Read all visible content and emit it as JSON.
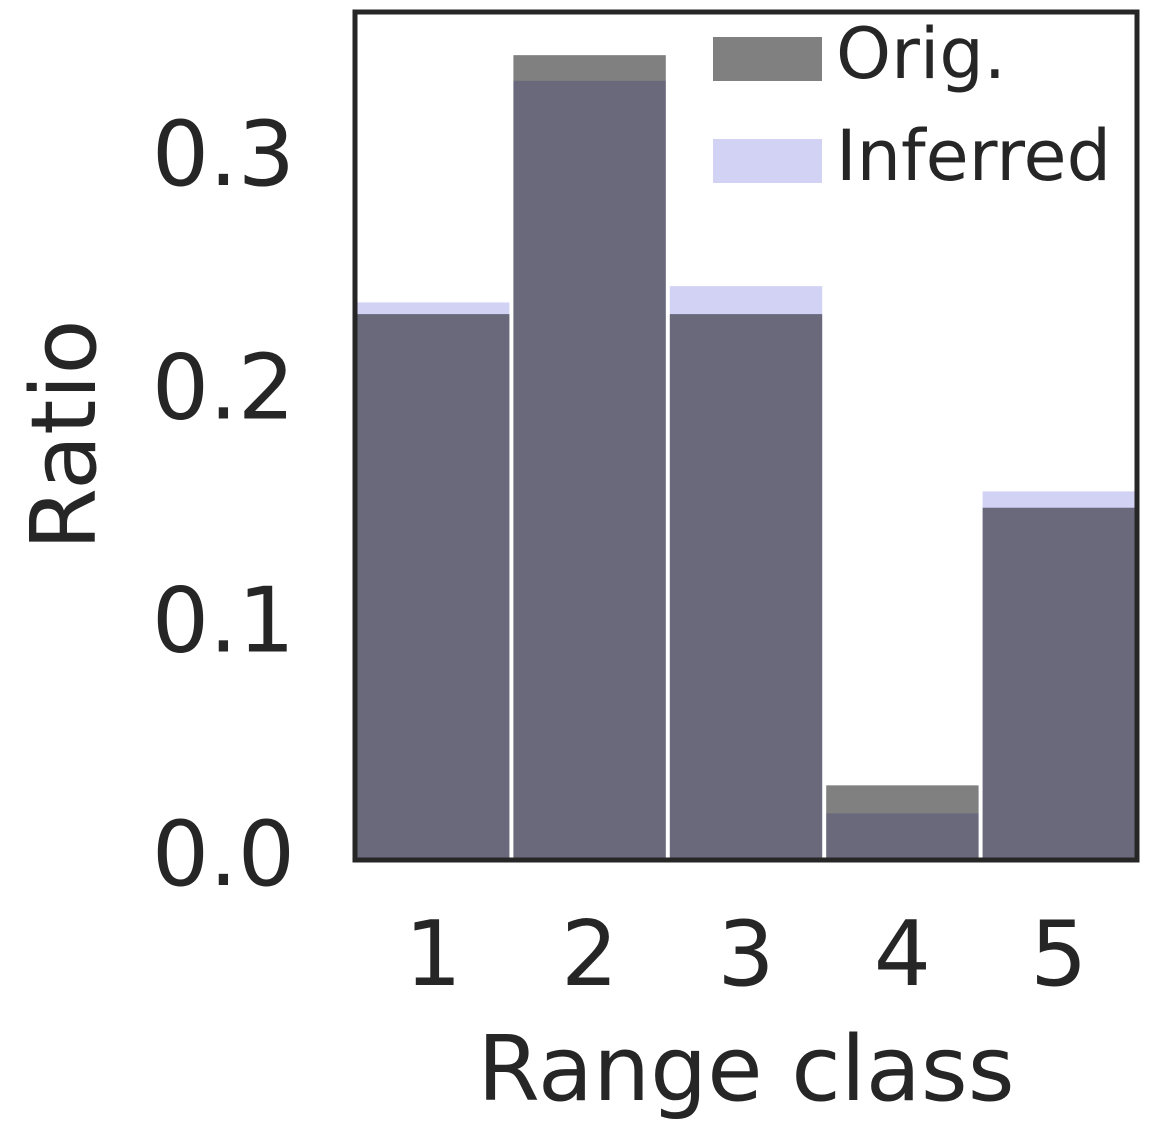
{
  "chart_data": {
    "type": "bar",
    "x_label": "Range class",
    "y_label": "Ratio",
    "categories": [
      "1",
      "2",
      "3",
      "4",
      "5"
    ],
    "series": [
      {
        "name": "Orig.",
        "color": "#808080",
        "values": [
          0.234,
          0.345,
          0.234,
          0.032,
          0.151
        ]
      },
      {
        "name": "Inferred",
        "color": "#d2d2f5",
        "values": [
          0.239,
          0.334,
          0.246,
          0.02,
          0.158
        ]
      }
    ],
    "ylim": [
      0,
      0.3635
    ],
    "yticks": [
      {
        "value": 0,
        "label": "0.0"
      },
      0.1,
      0.2,
      0.3
    ],
    "legend": "upper right",
    "grid": false
  }
}
